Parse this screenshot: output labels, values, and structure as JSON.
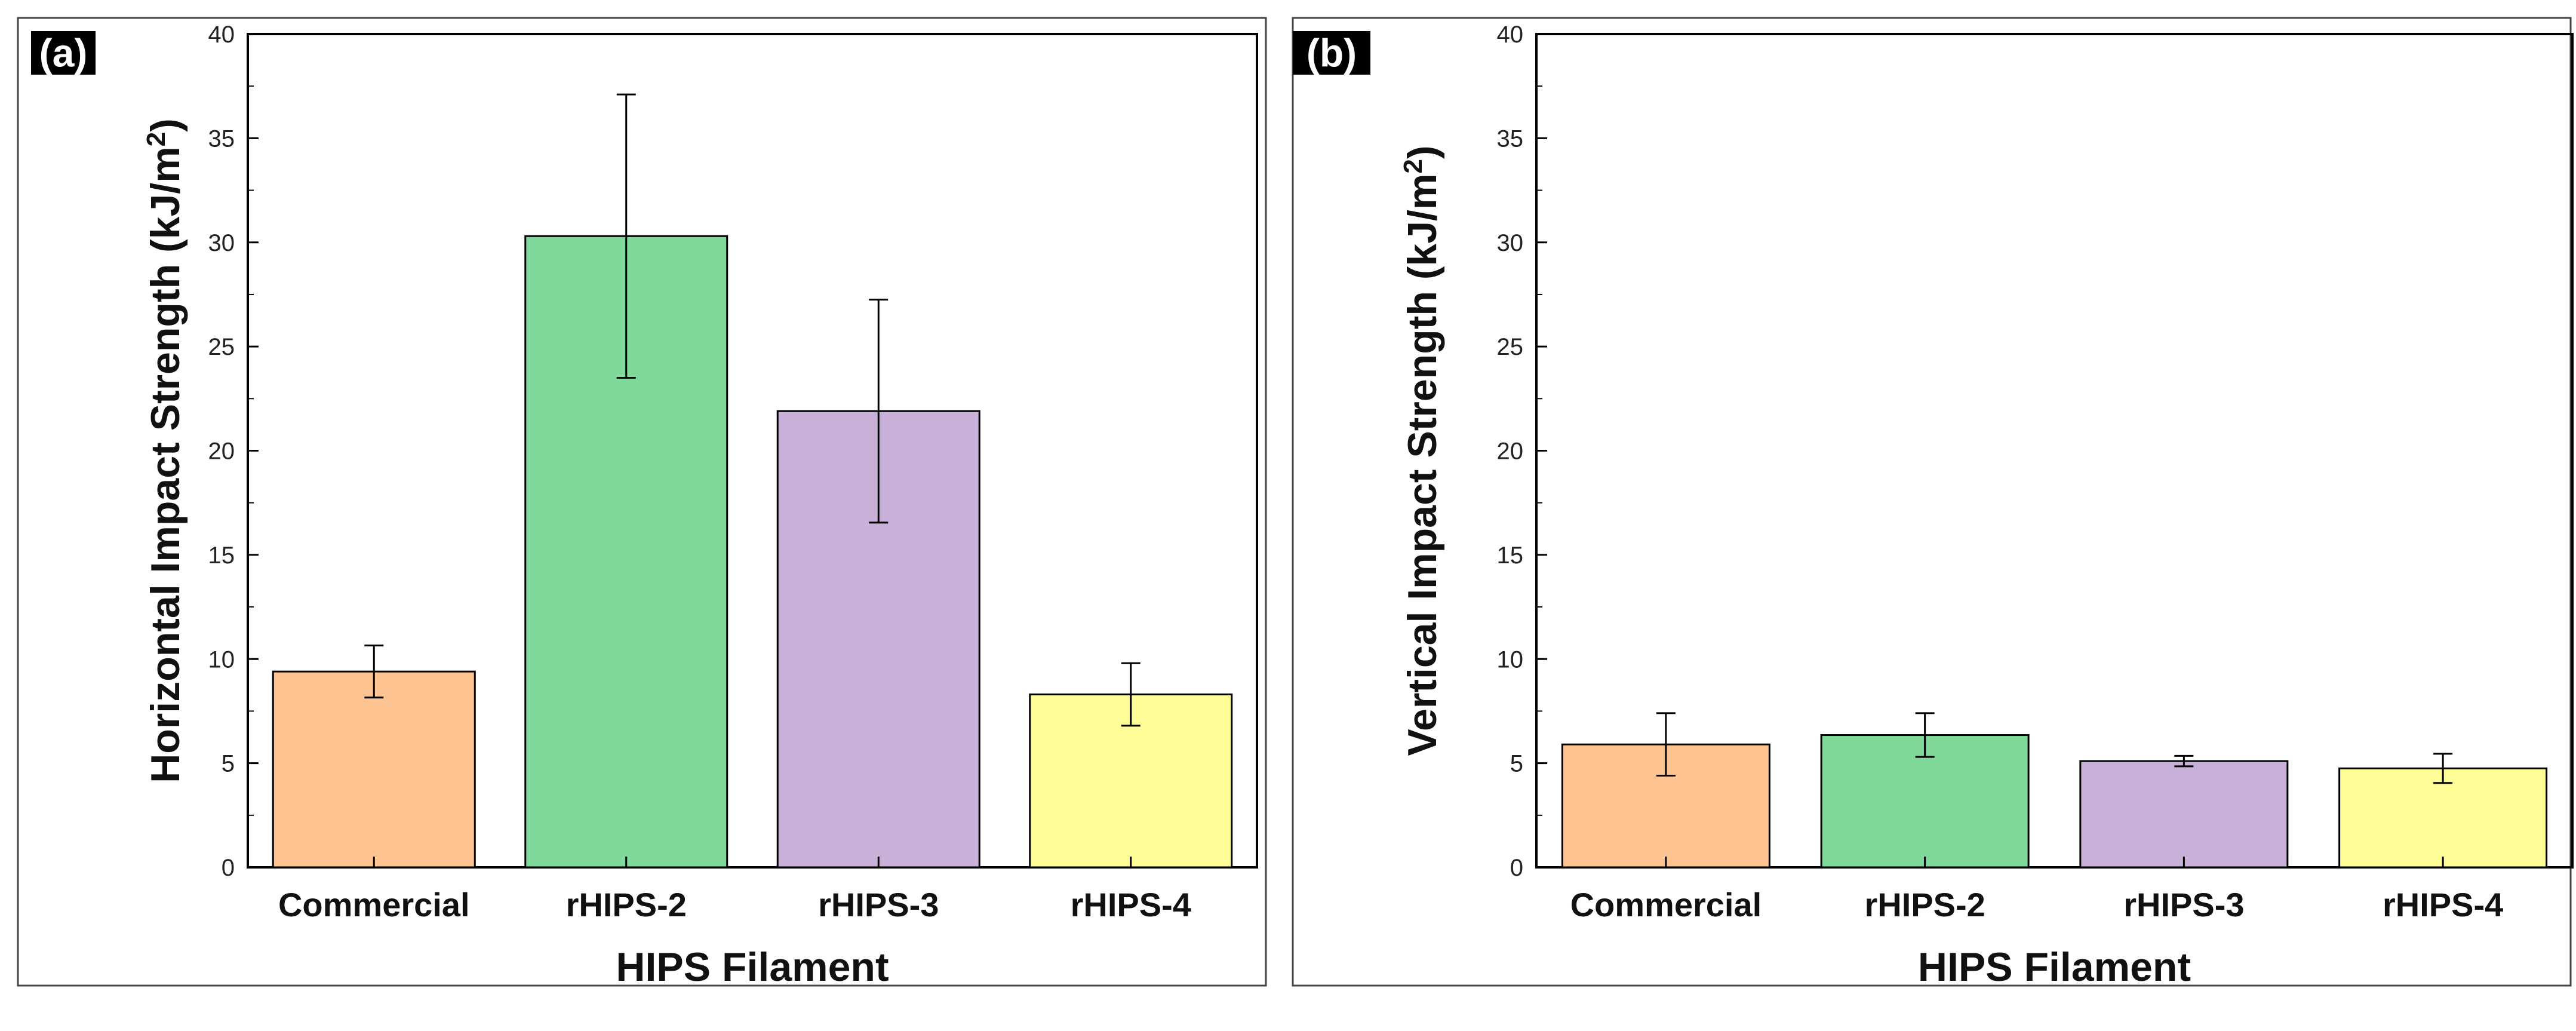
{
  "chart_data": [
    {
      "type": "bar",
      "panel_label": "(a)",
      "title": "",
      "xlabel": "HIPS Filament",
      "ylabel_text": "Horizontal Impact Strength (kJ/m",
      "ylabel_sup": "2",
      "ylabel_close": ")",
      "ylim": [
        0,
        40
      ],
      "yticks": [
        0,
        5,
        10,
        15,
        20,
        25,
        30,
        35,
        40
      ],
      "categories": [
        "Commercial",
        "rHIPS-2",
        "rHIPS-3",
        "rHIPS-4"
      ],
      "values": [
        9.4,
        30.3,
        21.9,
        8.3
      ],
      "errors": [
        1.25,
        6.8,
        5.35,
        1.5
      ],
      "colors": [
        "#FDC491",
        "#7ED99A",
        "#C8B0D8",
        "#FFFD98"
      ],
      "grid": false
    },
    {
      "type": "bar",
      "panel_label": "(b)",
      "title": "",
      "xlabel": "HIPS Filament",
      "ylabel_text": "Vertical Impact Strength (kJ/m",
      "ylabel_sup": "2",
      "ylabel_close": ")",
      "ylim": [
        0,
        40
      ],
      "yticks": [
        0,
        5,
        10,
        15,
        20,
        25,
        30,
        35,
        40
      ],
      "categories": [
        "Commercial",
        "rHIPS-2",
        "rHIPS-3",
        "rHIPS-4"
      ],
      "values": [
        5.9,
        6.35,
        5.1,
        4.75
      ],
      "errors": [
        1.5,
        1.05,
        0.25,
        0.7
      ],
      "colors": [
        "#FDC491",
        "#7ED99A",
        "#C8B0D8",
        "#FFFD98"
      ],
      "grid": false
    }
  ]
}
